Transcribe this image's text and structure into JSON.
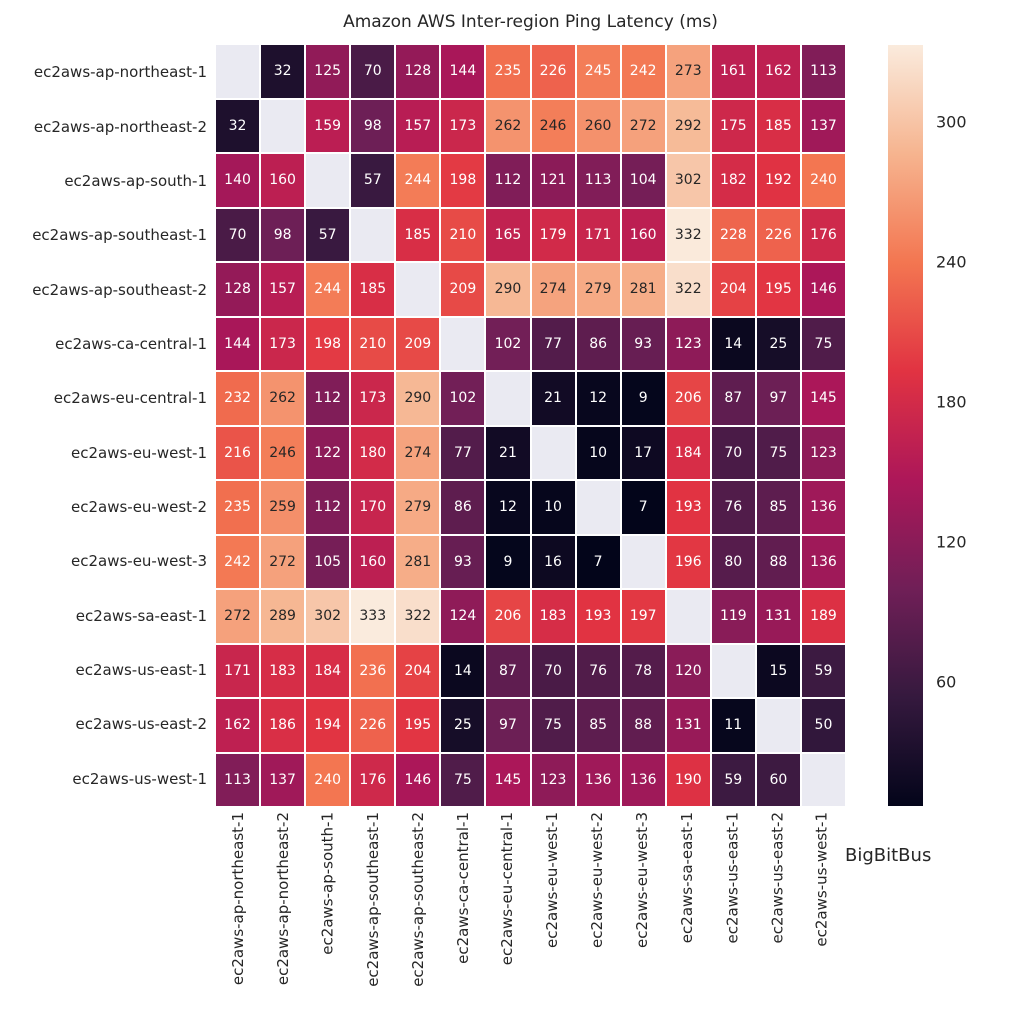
{
  "watermark": "BigBitBus",
  "chart_data": {
    "type": "heatmap",
    "title": "Amazon AWS Inter-region Ping Latency (ms)",
    "rows": [
      "ec2aws-ap-northeast-1",
      "ec2aws-ap-northeast-2",
      "ec2aws-ap-south-1",
      "ec2aws-ap-southeast-1",
      "ec2aws-ap-southeast-2",
      "ec2aws-ca-central-1",
      "ec2aws-eu-central-1",
      "ec2aws-eu-west-1",
      "ec2aws-eu-west-2",
      "ec2aws-eu-west-3",
      "ec2aws-sa-east-1",
      "ec2aws-us-east-1",
      "ec2aws-us-east-2",
      "ec2aws-us-west-1"
    ],
    "columns": [
      "ec2aws-ap-northeast-1",
      "ec2aws-ap-northeast-2",
      "ec2aws-ap-south-1",
      "ec2aws-ap-southeast-1",
      "ec2aws-ap-southeast-2",
      "ec2aws-ca-central-1",
      "ec2aws-eu-central-1",
      "ec2aws-eu-west-1",
      "ec2aws-eu-west-2",
      "ec2aws-eu-west-3",
      "ec2aws-sa-east-1",
      "ec2aws-us-east-1",
      "ec2aws-us-east-2",
      "ec2aws-us-west-1"
    ],
    "values": [
      [
        null,
        32,
        125,
        70,
        128,
        144,
        235,
        226,
        245,
        242,
        273,
        161,
        162,
        113
      ],
      [
        32,
        null,
        159,
        98,
        157,
        173,
        262,
        246,
        260,
        272,
        292,
        175,
        185,
        137
      ],
      [
        140,
        160,
        null,
        57,
        244,
        198,
        112,
        121,
        113,
        104,
        302,
        182,
        192,
        240
      ],
      [
        70,
        98,
        57,
        null,
        185,
        210,
        165,
        179,
        171,
        160,
        332,
        228,
        226,
        176
      ],
      [
        128,
        157,
        244,
        185,
        null,
        209,
        290,
        274,
        279,
        281,
        322,
        204,
        195,
        146
      ],
      [
        144,
        173,
        198,
        210,
        209,
        null,
        102,
        77,
        86,
        93,
        123,
        14,
        25,
        75
      ],
      [
        232,
        262,
        112,
        173,
        290,
        102,
        null,
        21,
        12,
        9,
        206,
        87,
        97,
        145
      ],
      [
        216,
        246,
        122,
        180,
        274,
        77,
        21,
        null,
        10,
        17,
        184,
        70,
        75,
        123
      ],
      [
        235,
        259,
        112,
        170,
        279,
        86,
        12,
        10,
        null,
        7,
        193,
        76,
        85,
        136
      ],
      [
        242,
        272,
        105,
        160,
        281,
        93,
        9,
        16,
        7,
        null,
        196,
        80,
        88,
        136
      ],
      [
        272,
        289,
        302,
        333,
        322,
        124,
        206,
        183,
        193,
        197,
        null,
        119,
        131,
        189
      ],
      [
        171,
        183,
        184,
        236,
        204,
        14,
        87,
        70,
        76,
        78,
        120,
        null,
        15,
        59
      ],
      [
        162,
        186,
        194,
        226,
        195,
        25,
        97,
        75,
        85,
        88,
        131,
        11,
        null,
        50
      ],
      [
        113,
        137,
        240,
        176,
        146,
        75,
        145,
        123,
        136,
        136,
        190,
        59,
        60,
        null
      ]
    ],
    "vmin": 7,
    "vmax": 333,
    "colorbar_ticks": [
      300,
      240,
      180,
      120,
      60
    ],
    "legend_position": "right",
    "grid": false,
    "colormap": {
      "name": "rocket",
      "stops": [
        {
          "t": 0.0,
          "color": "#03051a"
        },
        {
          "t": 0.1429,
          "color": "#35193e"
        },
        {
          "t": 0.2857,
          "color": "#701f57"
        },
        {
          "t": 0.4286,
          "color": "#ad1759"
        },
        {
          "t": 0.5714,
          "color": "#e13342"
        },
        {
          "t": 0.7143,
          "color": "#f37651"
        },
        {
          "t": 0.8571,
          "color": "#f6b48f"
        },
        {
          "t": 1.0,
          "color": "#faebdd"
        }
      ]
    },
    "nan_color": "#eaeaf2",
    "annotation_colors": {
      "light": "#ffffff",
      "dark": "#262626",
      "dark_threshold": 245.5
    }
  }
}
